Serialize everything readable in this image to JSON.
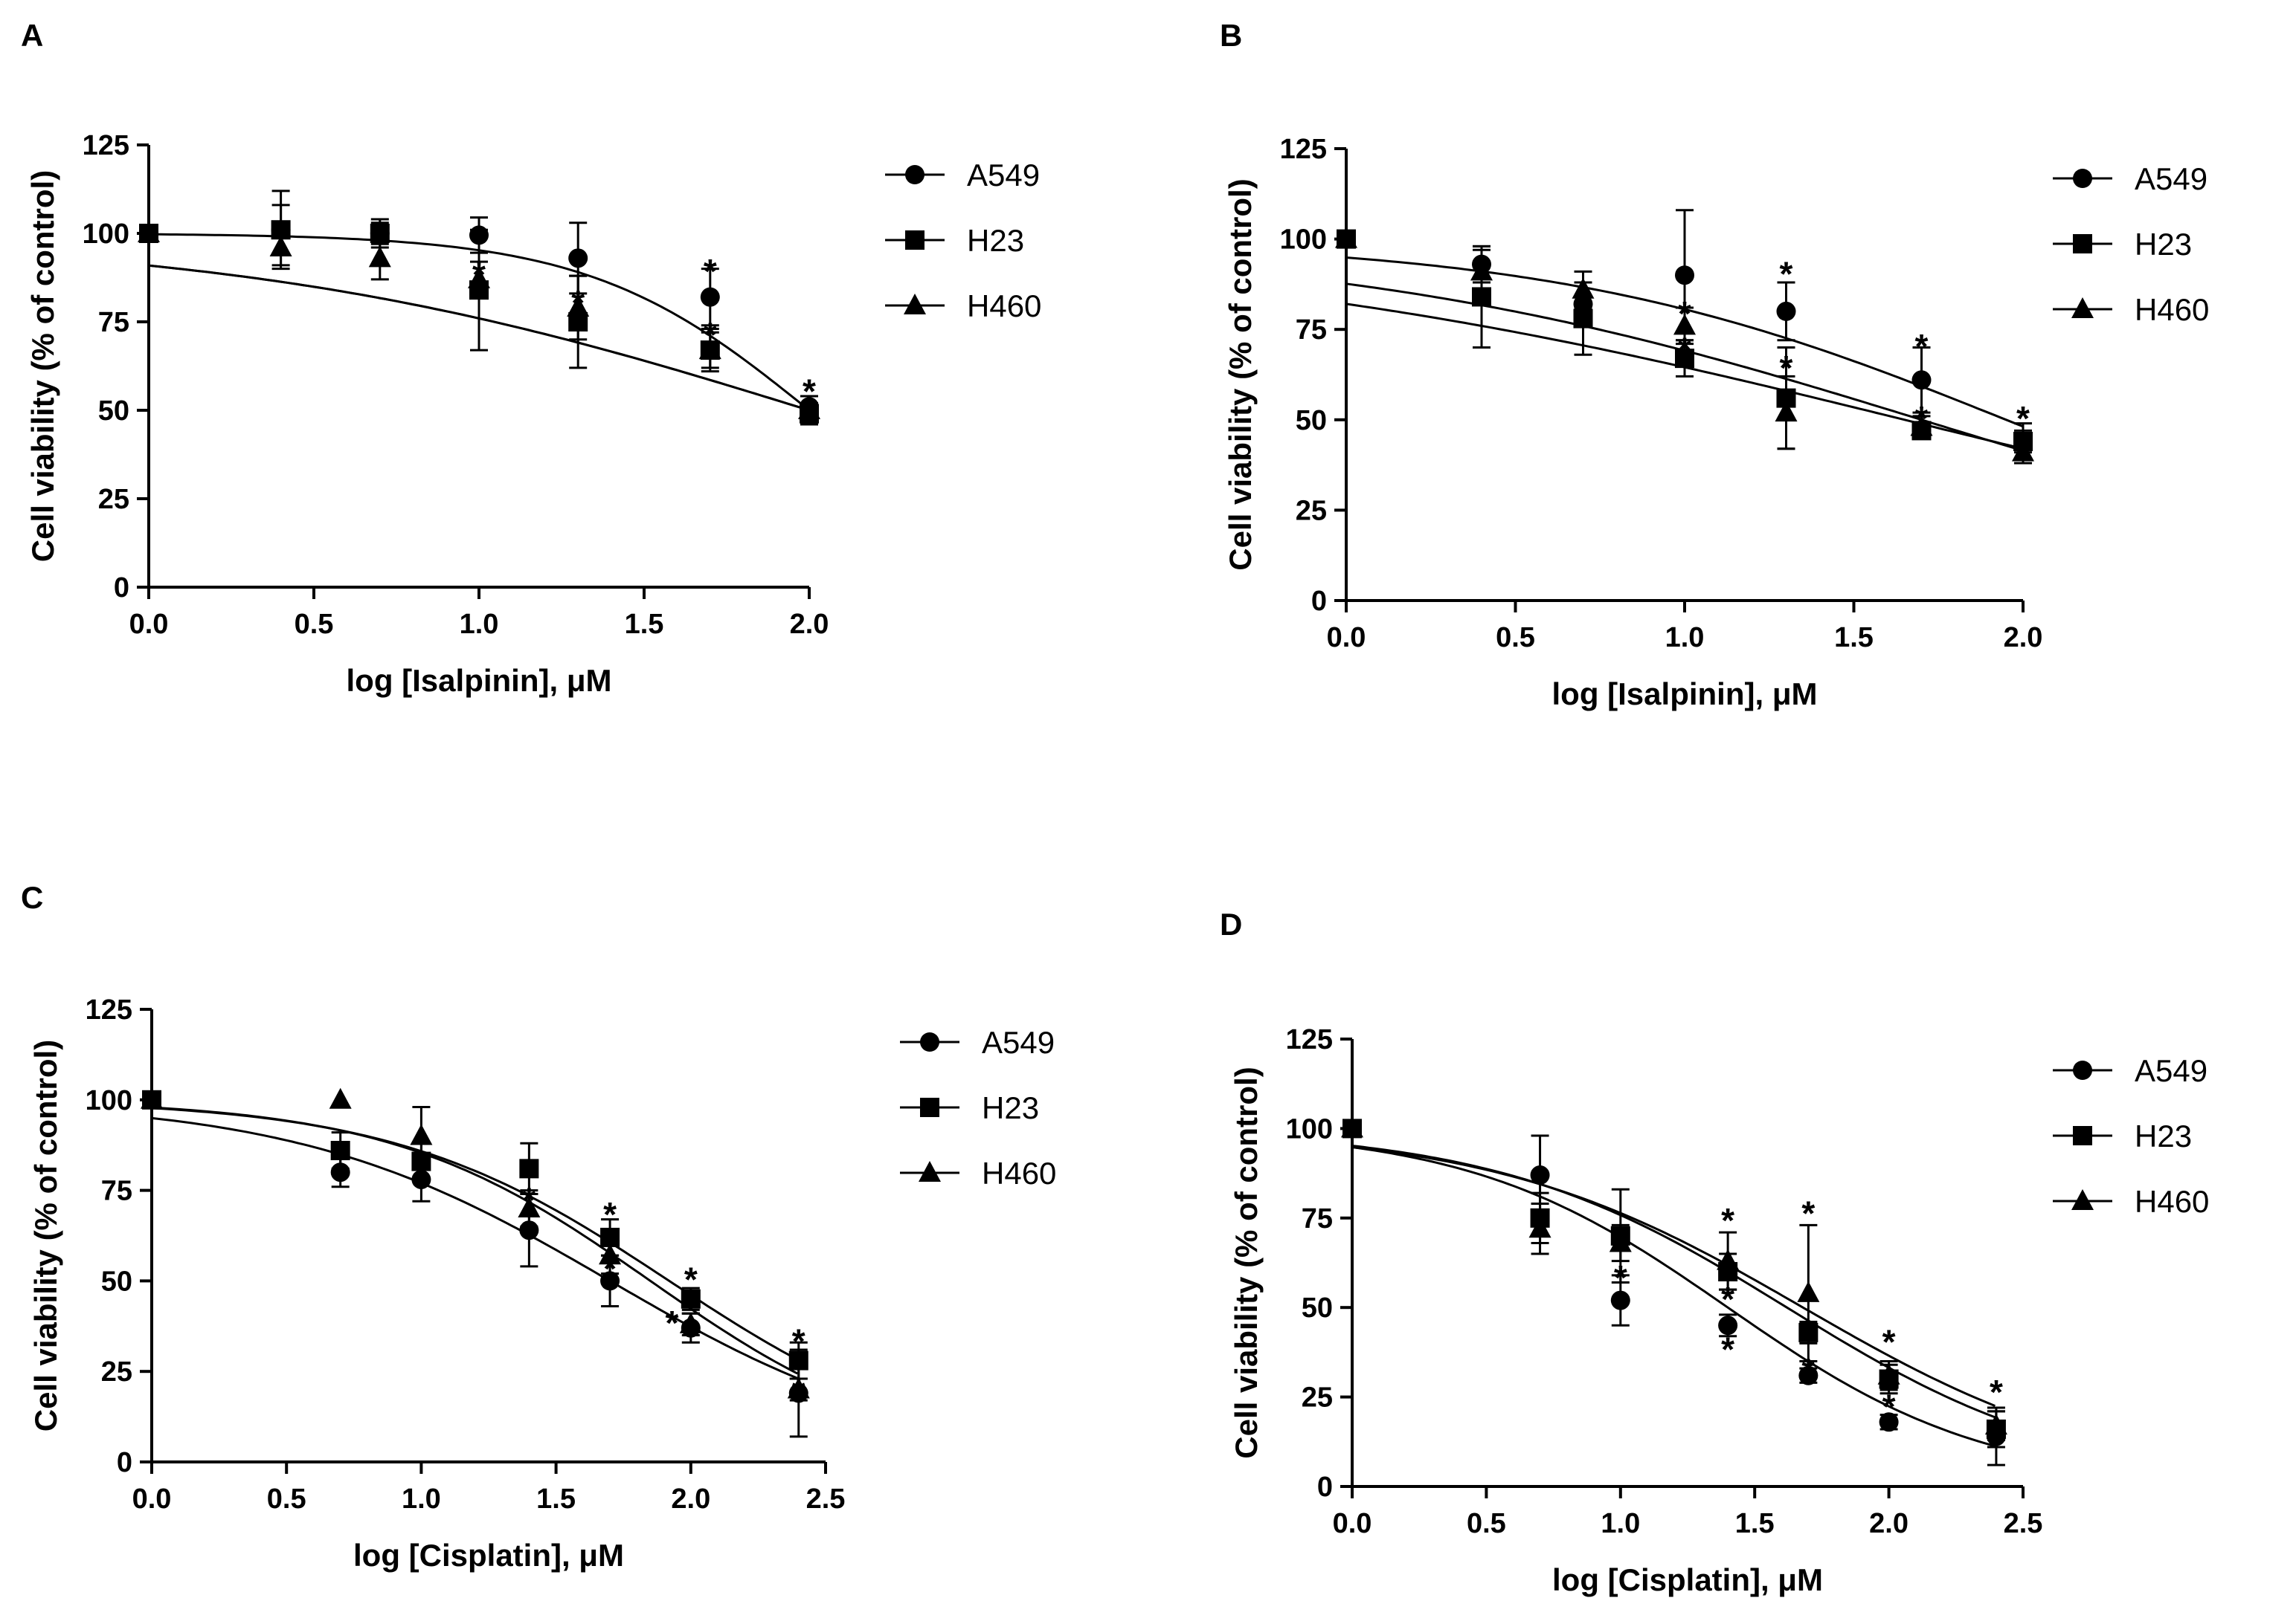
{
  "chart_data": [
    {
      "panel": "A",
      "type": "scatter",
      "title": "",
      "xlabel": "log [Isalpinin], μM",
      "ylabel": "Cell viability (% of control)",
      "xlim": [
        0.0,
        2.0
      ],
      "ylim": [
        0,
        125
      ],
      "xticks": [
        0.0,
        0.5,
        1.0,
        1.5,
        2.0
      ],
      "xtick_labels": [
        "0.0",
        "0.5",
        "1.0",
        "1.5",
        "2.0"
      ],
      "yticks": [
        0,
        25,
        50,
        75,
        100,
        125
      ],
      "ytick_labels": [
        "0",
        "25",
        "50",
        "75",
        "100",
        "125"
      ],
      "legend": "right",
      "fit": "dose-response curve",
      "series": [
        {
          "name": "A549",
          "marker": "circle",
          "x": [
            0.0,
            0.4,
            0.7,
            1.0,
            1.3,
            1.7,
            2.0
          ],
          "y": [
            100,
            101,
            100,
            99.5,
            93,
            82,
            51
          ],
          "err": [
            0,
            11,
            4,
            5,
            10,
            8,
            3
          ],
          "curve": {
            "top": 100,
            "bottom": 0,
            "logec50": 2.0,
            "hill": 1.3
          }
        },
        {
          "name": "H23",
          "marker": "square",
          "x": [
            0.0,
            0.4,
            0.7,
            1.0,
            1.3,
            1.7,
            2.0
          ],
          "y": [
            100,
            101,
            100,
            84,
            75,
            67,
            49
          ],
          "err": [
            0,
            7,
            3,
            17,
            13,
            6,
            3
          ],
          "curve": {
            "top": 100,
            "bottom": 0,
            "logec50": 2.0,
            "hill": 0.5
          }
        },
        {
          "name": "H460",
          "marker": "triangle",
          "x": [
            0.0,
            0.4,
            0.7,
            1.0,
            1.3,
            1.7,
            2.0
          ],
          "y": [
            100,
            96,
            93,
            87,
            79,
            67,
            50
          ],
          "err": [
            0,
            5,
            6,
            5,
            9,
            5,
            2
          ],
          "curve": {
            "top": 100,
            "bottom": 0,
            "logec50": 2.0,
            "hill": 0.5
          }
        }
      ],
      "significance": [
        {
          "x": 1.0,
          "y": 90,
          "label": "*"
        },
        {
          "x": 1.3,
          "y": 82,
          "label": "*"
        },
        {
          "x": 1.7,
          "y": 91,
          "label": "*"
        },
        {
          "x": 1.7,
          "y": 73,
          "label": "*"
        },
        {
          "x": 2.0,
          "y": 57,
          "label": "*"
        }
      ]
    },
    {
      "panel": "B",
      "type": "scatter",
      "title": "",
      "xlabel": "log [Isalpinin], μM",
      "ylabel": "Cell viability (% of control)",
      "xlim": [
        0.0,
        2.0
      ],
      "ylim": [
        0,
        125
      ],
      "xticks": [
        0.0,
        0.5,
        1.0,
        1.5,
        2.0
      ],
      "xtick_labels": [
        "0.0",
        "0.5",
        "1.0",
        "1.5",
        "2.0"
      ],
      "yticks": [
        0,
        25,
        50,
        75,
        100,
        125
      ],
      "ytick_labels": [
        "0",
        "25",
        "50",
        "75",
        "100",
        "125"
      ],
      "legend": "right",
      "fit": "dose-response curve",
      "series": [
        {
          "name": "A549",
          "marker": "circle",
          "x": [
            0.0,
            0.4,
            0.7,
            1.0,
            1.3,
            1.7,
            2.0
          ],
          "y": [
            100,
            93,
            82,
            90,
            80,
            61,
            44
          ],
          "err": [
            0,
            5,
            6,
            18,
            8,
            9,
            3
          ],
          "curve": {
            "top": 100,
            "bottom": 0,
            "logec50": 1.95,
            "hill": 0.65
          }
        },
        {
          "name": "H23",
          "marker": "square",
          "x": [
            0.0,
            0.4,
            0.7,
            1.0,
            1.3,
            1.7,
            2.0
          ],
          "y": [
            100,
            84,
            78,
            67,
            56,
            47,
            44
          ],
          "err": [
            0,
            14,
            10,
            5,
            14,
            2,
            5
          ],
          "curve": {
            "top": 100,
            "bottom": 0,
            "logec50": 1.65,
            "hill": 0.4
          }
        },
        {
          "name": "H460",
          "marker": "triangle",
          "x": [
            0.0,
            0.4,
            0.7,
            1.0,
            1.3,
            1.7,
            2.0
          ],
          "y": [
            100,
            91,
            86,
            76,
            52,
            48,
            41
          ],
          "err": [
            0,
            6,
            5,
            5,
            10,
            3,
            3
          ],
          "curve": {
            "top": 100,
            "bottom": 0,
            "logec50": 1.7,
            "hill": 0.5
          }
        }
      ],
      "significance": [
        {
          "x": 1.0,
          "y": 81,
          "label": "*"
        },
        {
          "x": 1.0,
          "y": 71,
          "label": "*"
        },
        {
          "x": 1.3,
          "y": 92,
          "label": "*"
        },
        {
          "x": 1.3,
          "y": 66,
          "label": "*"
        },
        {
          "x": 1.7,
          "y": 72,
          "label": "*"
        },
        {
          "x": 1.7,
          "y": 52,
          "label": "*"
        },
        {
          "x": 2.0,
          "y": 52,
          "label": "*"
        }
      ]
    },
    {
      "panel": "C",
      "type": "scatter",
      "title": "",
      "xlabel": "log [Cisplatin], μM",
      "ylabel": "Cell viability (% of control)",
      "xlim": [
        0.0,
        2.5
      ],
      "ylim": [
        0,
        125
      ],
      "xticks": [
        0.0,
        0.5,
        1.0,
        1.5,
        2.0,
        2.5
      ],
      "xtick_labels": [
        "0.0",
        "0.5",
        "1.0",
        "1.5",
        "2.0",
        "2.5"
      ],
      "yticks": [
        0,
        25,
        50,
        75,
        100,
        125
      ],
      "ytick_labels": [
        "0",
        "25",
        "50",
        "75",
        "100",
        "125"
      ],
      "legend": "right",
      "fit": "dose-response curve",
      "series": [
        {
          "name": "A549",
          "marker": "circle",
          "x": [
            0.0,
            0.7,
            1.0,
            1.4,
            1.7,
            2.0,
            2.4
          ],
          "y": [
            100,
            80,
            78,
            64,
            50,
            37,
            19
          ],
          "err": [
            0,
            4,
            6,
            10,
            7,
            4,
            12
          ],
          "curve": {
            "top": 100,
            "bottom": 0,
            "logec50": 1.7,
            "hill": 0.75
          }
        },
        {
          "name": "H23",
          "marker": "square",
          "x": [
            0.0,
            0.7,
            1.0,
            1.4,
            1.7,
            2.0,
            2.4
          ],
          "y": [
            100,
            86,
            83,
            81,
            62,
            45,
            28
          ],
          "err": [
            0,
            5,
            5,
            7,
            5,
            3,
            5
          ],
          "curve": {
            "top": 100,
            "bottom": 0,
            "logec50": 1.92,
            "hill": 0.85
          }
        },
        {
          "name": "H460",
          "marker": "triangle",
          "x": [
            0.0,
            0.7,
            1.0,
            1.4,
            1.7,
            2.0,
            2.4
          ],
          "y": [
            100,
            100,
            90,
            70,
            57,
            38,
            20
          ],
          "err": [
            0,
            0,
            8,
            5,
            5,
            3,
            3
          ],
          "curve": {
            "top": 100,
            "bottom": 0,
            "logec50": 1.85,
            "hill": 0.9
          }
        }
      ],
      "significance": [
        {
          "x": 1.4,
          "y": 74,
          "label": "*"
        },
        {
          "x": 1.7,
          "y": 70,
          "label": "*"
        },
        {
          "x": 1.7,
          "y": 55,
          "label": "*"
        },
        {
          "x": 1.93,
          "y": 40,
          "label": "*"
        },
        {
          "x": 2.0,
          "y": 52,
          "label": "*"
        },
        {
          "x": 2.4,
          "y": 35,
          "label": "*"
        },
        {
          "x": 2.4,
          "y": 21,
          "label": "*"
        }
      ]
    },
    {
      "panel": "D",
      "type": "scatter",
      "title": "",
      "xlabel": "log [Cisplatin], μM",
      "ylabel": "Cell viability (% of control)",
      "xlim": [
        0.0,
        2.5
      ],
      "ylim": [
        0,
        125
      ],
      "xticks": [
        0.0,
        0.5,
        1.0,
        1.5,
        2.0,
        2.5
      ],
      "xtick_labels": [
        "0.0",
        "0.5",
        "1.0",
        "1.5",
        "2.0",
        "2.5"
      ],
      "yticks": [
        0,
        25,
        50,
        75,
        100,
        125
      ],
      "ytick_labels": [
        "0",
        "25",
        "50",
        "75",
        "100",
        "125"
      ],
      "legend": "right",
      "fit": "dose-response curve",
      "series": [
        {
          "name": "A549",
          "marker": "circle",
          "x": [
            0.0,
            0.7,
            1.0,
            1.4,
            1.7,
            2.0,
            2.4
          ],
          "y": [
            100,
            87,
            52,
            45,
            31,
            18,
            14
          ],
          "err": [
            0,
            11,
            7,
            3,
            2,
            2,
            8
          ],
          "curve": {
            "top": 100,
            "bottom": 0,
            "logec50": 1.4,
            "hill": 0.9
          }
        },
        {
          "name": "H23",
          "marker": "square",
          "x": [
            0.0,
            0.7,
            1.0,
            1.4,
            1.7,
            2.0,
            2.4
          ],
          "y": [
            100,
            75,
            70,
            60,
            43,
            30,
            16
          ],
          "err": [
            0,
            7,
            13,
            5,
            3,
            4,
            5
          ],
          "curve": {
            "top": 100,
            "bottom": 0,
            "logec50": 1.62,
            "hill": 0.8
          }
        },
        {
          "name": "H460",
          "marker": "triangle",
          "x": [
            0.0,
            0.7,
            1.0,
            1.4,
            1.7,
            2.0,
            2.4
          ],
          "y": [
            100,
            72,
            68,
            63,
            54,
            31,
            17
          ],
          "err": [
            0,
            7,
            5,
            8,
            19,
            4,
            4
          ],
          "curve": {
            "top": 100,
            "bottom": 0,
            "logec50": 1.68,
            "hill": 0.75
          }
        }
      ],
      "significance": [
        {
          "x": 1.0,
          "y": 60,
          "label": "*"
        },
        {
          "x": 1.4,
          "y": 76,
          "label": "*"
        },
        {
          "x": 1.4,
          "y": 54,
          "label": "*"
        },
        {
          "x": 1.4,
          "y": 40,
          "label": "*"
        },
        {
          "x": 1.7,
          "y": 78,
          "label": "*"
        },
        {
          "x": 1.7,
          "y": 34,
          "label": "*"
        },
        {
          "x": 2.0,
          "y": 42,
          "label": "*"
        },
        {
          "x": 2.0,
          "y": 24,
          "label": "*"
        },
        {
          "x": 2.4,
          "y": 28,
          "label": "*"
        }
      ]
    }
  ]
}
